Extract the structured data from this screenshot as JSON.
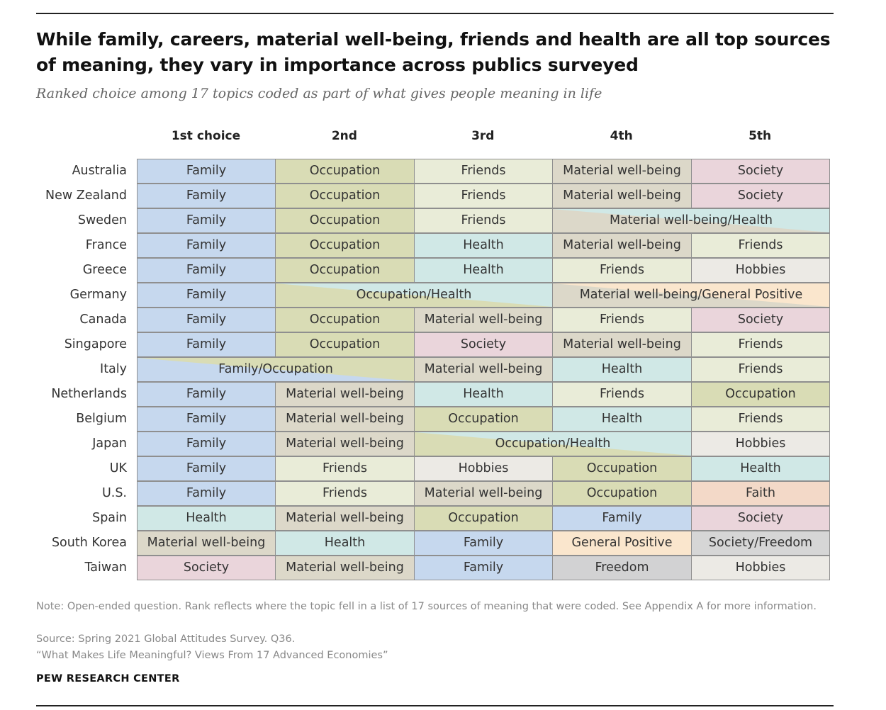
{
  "chart_data": {
    "type": "table",
    "title": "While family, careers, material well-being, friends and health are all top sources of meaning, they vary in importance across publics surveyed",
    "subtitle": "Ranked choice among 17 topics coded as part of what gives people meaning in life",
    "columns": [
      "1st choice",
      "2nd",
      "3rd",
      "4th",
      "5th"
    ],
    "colors": {
      "Family": "#c6d8ee",
      "Occupation": "#d9dcb5",
      "Friends": "#e9ecd8",
      "Material well-being": "#dcd8c9",
      "Society": "#ead5db",
      "Health": "#d0e8e6",
      "Hobbies": "#eceae5",
      "Faith": "#f3d9c8",
      "General Positive": "#fae6cd",
      "Freedom": "#d2d2d3",
      "Society/Freedom": "#d6d6d6"
    },
    "rows": [
      {
        "country": "Australia",
        "cells": [
          {
            "label": "Family",
            "span": 1,
            "colors": [
              "Family"
            ]
          },
          {
            "label": "Occupation",
            "span": 1,
            "colors": [
              "Occupation"
            ]
          },
          {
            "label": "Friends",
            "span": 1,
            "colors": [
              "Friends"
            ]
          },
          {
            "label": "Material well-being",
            "span": 1,
            "colors": [
              "Material well-being"
            ]
          },
          {
            "label": "Society",
            "span": 1,
            "colors": [
              "Society"
            ]
          }
        ]
      },
      {
        "country": "New Zealand",
        "cells": [
          {
            "label": "Family",
            "span": 1,
            "colors": [
              "Family"
            ]
          },
          {
            "label": "Occupation",
            "span": 1,
            "colors": [
              "Occupation"
            ]
          },
          {
            "label": "Friends",
            "span": 1,
            "colors": [
              "Friends"
            ]
          },
          {
            "label": "Material well-being",
            "span": 1,
            "colors": [
              "Material well-being"
            ]
          },
          {
            "label": "Society",
            "span": 1,
            "colors": [
              "Society"
            ]
          }
        ]
      },
      {
        "country": "Sweden",
        "cells": [
          {
            "label": "Family",
            "span": 1,
            "colors": [
              "Family"
            ]
          },
          {
            "label": "Occupation",
            "span": 1,
            "colors": [
              "Occupation"
            ]
          },
          {
            "label": "Friends",
            "span": 1,
            "colors": [
              "Friends"
            ]
          },
          {
            "label": "Material well-being/Health",
            "span": 2,
            "colors": [
              "Material well-being",
              "Health"
            ]
          }
        ]
      },
      {
        "country": "France",
        "cells": [
          {
            "label": "Family",
            "span": 1,
            "colors": [
              "Family"
            ]
          },
          {
            "label": "Occupation",
            "span": 1,
            "colors": [
              "Occupation"
            ]
          },
          {
            "label": "Health",
            "span": 1,
            "colors": [
              "Health"
            ]
          },
          {
            "label": "Material well-being",
            "span": 1,
            "colors": [
              "Material well-being"
            ]
          },
          {
            "label": "Friends",
            "span": 1,
            "colors": [
              "Friends"
            ]
          }
        ]
      },
      {
        "country": "Greece",
        "cells": [
          {
            "label": "Family",
            "span": 1,
            "colors": [
              "Family"
            ]
          },
          {
            "label": "Occupation",
            "span": 1,
            "colors": [
              "Occupation"
            ]
          },
          {
            "label": "Health",
            "span": 1,
            "colors": [
              "Health"
            ]
          },
          {
            "label": "Friends",
            "span": 1,
            "colors": [
              "Friends"
            ]
          },
          {
            "label": "Hobbies",
            "span": 1,
            "colors": [
              "Hobbies"
            ]
          }
        ]
      },
      {
        "country": "Germany",
        "cells": [
          {
            "label": "Family",
            "span": 1,
            "colors": [
              "Family"
            ]
          },
          {
            "label": "Occupation/Health",
            "span": 2,
            "colors": [
              "Occupation",
              "Health"
            ]
          },
          {
            "label": "Material well-being/General Positive",
            "span": 2,
            "colors": [
              "Material well-being",
              "General Positive"
            ]
          }
        ]
      },
      {
        "country": "Canada",
        "cells": [
          {
            "label": "Family",
            "span": 1,
            "colors": [
              "Family"
            ]
          },
          {
            "label": "Occupation",
            "span": 1,
            "colors": [
              "Occupation"
            ]
          },
          {
            "label": "Material well-being",
            "span": 1,
            "colors": [
              "Material well-being"
            ]
          },
          {
            "label": "Friends",
            "span": 1,
            "colors": [
              "Friends"
            ]
          },
          {
            "label": "Society",
            "span": 1,
            "colors": [
              "Society"
            ]
          }
        ]
      },
      {
        "country": "Singapore",
        "cells": [
          {
            "label": "Family",
            "span": 1,
            "colors": [
              "Family"
            ]
          },
          {
            "label": "Occupation",
            "span": 1,
            "colors": [
              "Occupation"
            ]
          },
          {
            "label": "Society",
            "span": 1,
            "colors": [
              "Society"
            ]
          },
          {
            "label": "Material well-being",
            "span": 1,
            "colors": [
              "Material well-being"
            ]
          },
          {
            "label": "Friends",
            "span": 1,
            "colors": [
              "Friends"
            ]
          }
        ]
      },
      {
        "country": "Italy",
        "cells": [
          {
            "label": "Family/Occupation",
            "span": 2,
            "colors": [
              "Family",
              "Occupation"
            ]
          },
          {
            "label": "Material well-being",
            "span": 1,
            "colors": [
              "Material well-being"
            ]
          },
          {
            "label": "Health",
            "span": 1,
            "colors": [
              "Health"
            ]
          },
          {
            "label": "Friends",
            "span": 1,
            "colors": [
              "Friends"
            ]
          }
        ]
      },
      {
        "country": "Netherlands",
        "cells": [
          {
            "label": "Family",
            "span": 1,
            "colors": [
              "Family"
            ]
          },
          {
            "label": "Material well-being",
            "span": 1,
            "colors": [
              "Material well-being"
            ]
          },
          {
            "label": "Health",
            "span": 1,
            "colors": [
              "Health"
            ]
          },
          {
            "label": "Friends",
            "span": 1,
            "colors": [
              "Friends"
            ]
          },
          {
            "label": "Occupation",
            "span": 1,
            "colors": [
              "Occupation"
            ]
          }
        ]
      },
      {
        "country": "Belgium",
        "cells": [
          {
            "label": "Family",
            "span": 1,
            "colors": [
              "Family"
            ]
          },
          {
            "label": "Material well-being",
            "span": 1,
            "colors": [
              "Material well-being"
            ]
          },
          {
            "label": "Occupation",
            "span": 1,
            "colors": [
              "Occupation"
            ]
          },
          {
            "label": "Health",
            "span": 1,
            "colors": [
              "Health"
            ]
          },
          {
            "label": "Friends",
            "span": 1,
            "colors": [
              "Friends"
            ]
          }
        ]
      },
      {
        "country": "Japan",
        "cells": [
          {
            "label": "Family",
            "span": 1,
            "colors": [
              "Family"
            ]
          },
          {
            "label": "Material well-being",
            "span": 1,
            "colors": [
              "Material well-being"
            ]
          },
          {
            "label": "Occupation/Health",
            "span": 2,
            "colors": [
              "Occupation",
              "Health"
            ]
          },
          {
            "label": "Hobbies",
            "span": 1,
            "colors": [
              "Hobbies"
            ]
          }
        ]
      },
      {
        "country": "UK",
        "cells": [
          {
            "label": "Family",
            "span": 1,
            "colors": [
              "Family"
            ]
          },
          {
            "label": "Friends",
            "span": 1,
            "colors": [
              "Friends"
            ]
          },
          {
            "label": "Hobbies",
            "span": 1,
            "colors": [
              "Hobbies"
            ]
          },
          {
            "label": "Occupation",
            "span": 1,
            "colors": [
              "Occupation"
            ]
          },
          {
            "label": "Health",
            "span": 1,
            "colors": [
              "Health"
            ]
          }
        ]
      },
      {
        "country": "U.S.",
        "cells": [
          {
            "label": "Family",
            "span": 1,
            "colors": [
              "Family"
            ]
          },
          {
            "label": "Friends",
            "span": 1,
            "colors": [
              "Friends"
            ]
          },
          {
            "label": "Material well-being",
            "span": 1,
            "colors": [
              "Material well-being"
            ]
          },
          {
            "label": "Occupation",
            "span": 1,
            "colors": [
              "Occupation"
            ]
          },
          {
            "label": "Faith",
            "span": 1,
            "colors": [
              "Faith"
            ]
          }
        ]
      },
      {
        "country": "Spain",
        "cells": [
          {
            "label": "Health",
            "span": 1,
            "colors": [
              "Health"
            ]
          },
          {
            "label": "Material well-being",
            "span": 1,
            "colors": [
              "Material well-being"
            ]
          },
          {
            "label": "Occupation",
            "span": 1,
            "colors": [
              "Occupation"
            ]
          },
          {
            "label": "Family",
            "span": 1,
            "colors": [
              "Family"
            ]
          },
          {
            "label": "Society",
            "span": 1,
            "colors": [
              "Society"
            ]
          }
        ]
      },
      {
        "country": "South Korea",
        "cells": [
          {
            "label": "Material well-being",
            "span": 1,
            "colors": [
              "Material well-being"
            ]
          },
          {
            "label": "Health",
            "span": 1,
            "colors": [
              "Health"
            ]
          },
          {
            "label": "Family",
            "span": 1,
            "colors": [
              "Family"
            ]
          },
          {
            "label": "General Positive",
            "span": 1,
            "colors": [
              "General Positive"
            ]
          },
          {
            "label": "Society/Freedom",
            "span": 1,
            "colors": [
              "Society/Freedom"
            ]
          }
        ]
      },
      {
        "country": "Taiwan",
        "cells": [
          {
            "label": "Society",
            "span": 1,
            "colors": [
              "Society"
            ]
          },
          {
            "label": "Material well-being",
            "span": 1,
            "colors": [
              "Material well-being"
            ]
          },
          {
            "label": "Family",
            "span": 1,
            "colors": [
              "Family"
            ]
          },
          {
            "label": "Freedom",
            "span": 1,
            "colors": [
              "Freedom"
            ]
          },
          {
            "label": "Hobbies",
            "span": 1,
            "colors": [
              "Hobbies"
            ]
          }
        ]
      }
    ]
  },
  "footer": {
    "note": "Note: Open-ended question. Rank reflects where the topic fell in a list of 17 sources of meaning that were coded. See Appendix A for more information.",
    "source": "Source: Spring 2021 Global Attitudes Survey. Q36.",
    "report": "“What Makes Life Meaningful? Views From 17 Advanced Economies”",
    "brand": "PEW RESEARCH CENTER"
  }
}
